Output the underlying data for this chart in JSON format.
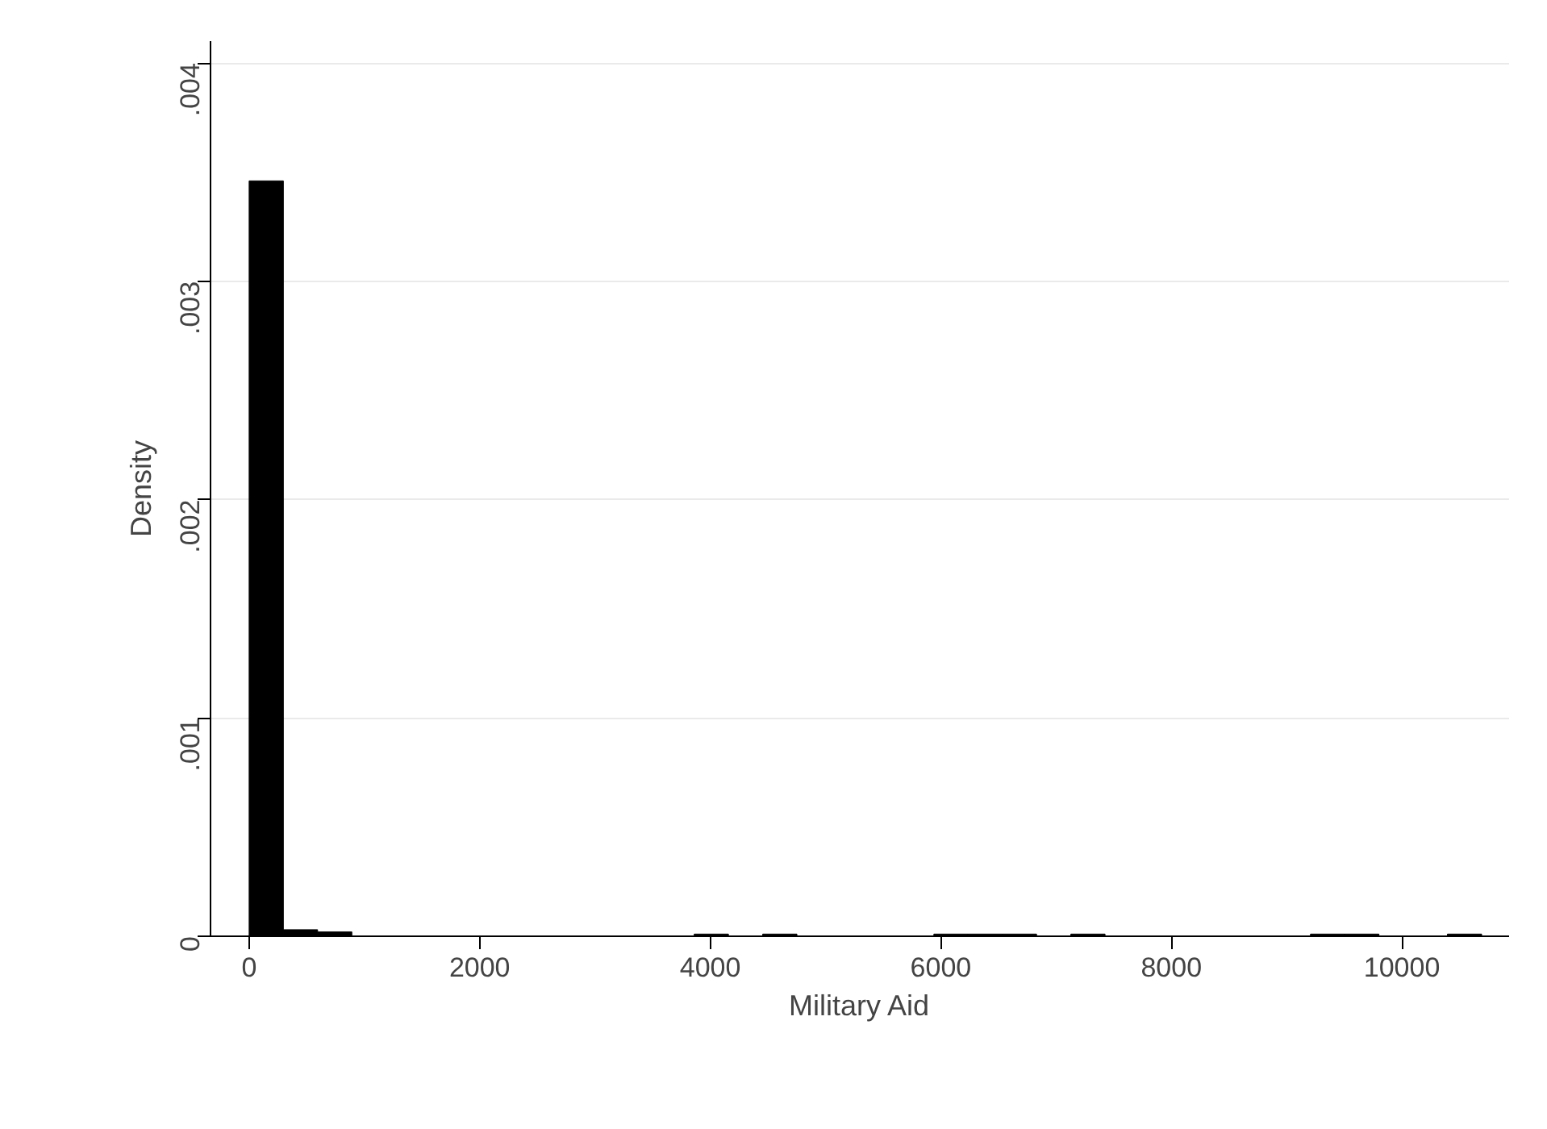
{
  "chart_data": {
    "type": "histogram",
    "xlabel": "Military Aid",
    "ylabel": "Density",
    "bins": [
      0,
      297,
      594,
      891,
      1188,
      1485,
      1782,
      2079,
      2376,
      2673,
      2970,
      3267,
      3564,
      3861,
      4158,
      4455,
      4752,
      5049,
      5346,
      5643,
      5940,
      6237,
      6534,
      6831,
      7128,
      7425,
      7722,
      8019,
      8316,
      8613,
      8910,
      9207,
      9504,
      9801,
      10098,
      10395,
      10692
    ],
    "values": [
      0.00346,
      3e-05,
      2e-05,
      0,
      0,
      0,
      0,
      0,
      0,
      0,
      0,
      0,
      0,
      1e-05,
      0,
      1e-05,
      0,
      0,
      0,
      0,
      1e-05,
      1e-05,
      1e-05,
      0,
      1e-05,
      0,
      0,
      0,
      0,
      0,
      0,
      1e-05,
      1e-05,
      0,
      0,
      1e-05
    ],
    "color": "#000000",
    "xlim": [
      -335,
      10930
    ],
    "ylim": [
      0,
      0.0041
    ],
    "xticks": [
      0,
      2000,
      4000,
      6000,
      8000,
      10000
    ],
    "yticks": [
      {
        "value": 0,
        "label": "0"
      },
      {
        "value": 0.001,
        "label": ".001"
      },
      {
        "value": 0.002,
        "label": ".002"
      },
      {
        "value": 0.003,
        "label": ".003"
      },
      {
        "value": 0.004,
        "label": ".004"
      }
    ],
    "grid": "y"
  }
}
